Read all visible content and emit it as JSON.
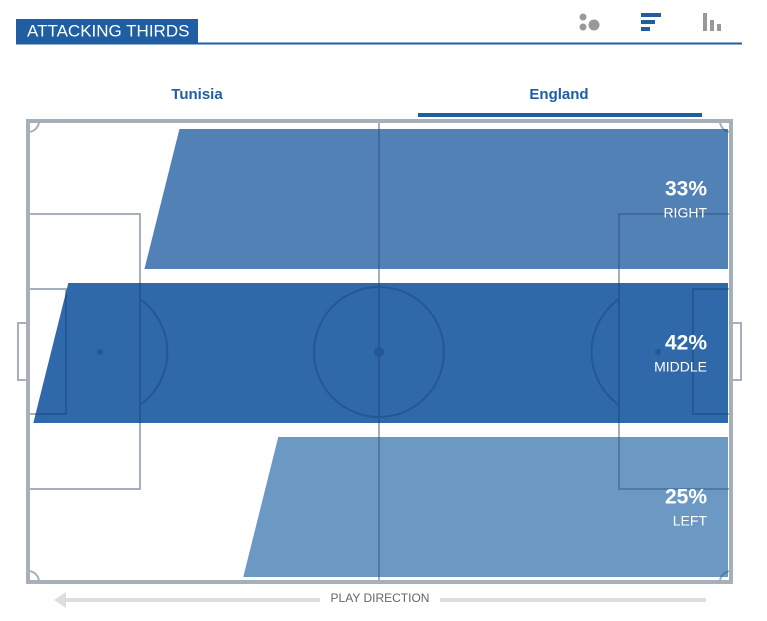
{
  "header": {
    "title": "ATTACKING THIRDS"
  },
  "tabs": [
    "Tunisia",
    "England"
  ],
  "selected_tab": 1,
  "chart_data": {
    "type": "bar",
    "orientation": "horizontal",
    "categories": [
      "RIGHT",
      "MIDDLE",
      "LEFT"
    ],
    "values": [
      33,
      42,
      25
    ],
    "value_labels": [
      "33%",
      "42%",
      "25%"
    ],
    "colors": [
      "#4577b0",
      "#1f5ea3",
      "#6190c0"
    ],
    "annotation": "PLAY DIRECTION"
  }
}
